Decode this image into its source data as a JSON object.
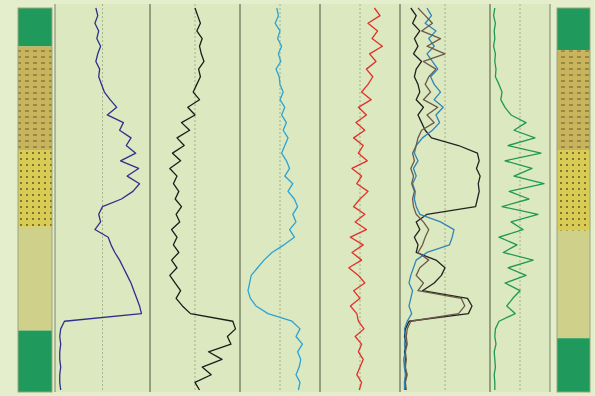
{
  "chart_data": [
    {
      "type": "bar",
      "stacked": true,
      "tick_labels": false,
      "categories": [
        null,
        null
      ],
      "ylim": [
        0,
        100
      ],
      "series": [
        {
          "color": "#1f9a5c",
          "values": [
            10,
            11
          ]
        },
        {
          "color": "#c9b45e",
          "values": [
            27,
            26
          ]
        },
        {
          "color": "#d9cc55",
          "values": [
            20,
            21
          ]
        },
        {
          "color": "#cfd08a",
          "values": [
            27,
            28
          ]
        },
        {
          "color": "#1f9a5c",
          "values": [
            16,
            14
          ]
        }
      ]
    },
    {
      "type": "line",
      "tick_labels": false,
      "grid": true,
      "xlim": [
        0,
        100
      ],
      "ylim": [
        0,
        10
      ],
      "yticks": [
        0,
        5,
        10
      ],
      "x": [
        0,
        2,
        4,
        6,
        8,
        10,
        12,
        14,
        16,
        18,
        20,
        22,
        24,
        26,
        28,
        30,
        32,
        34,
        36,
        38,
        40,
        42,
        44,
        46,
        48,
        50,
        52,
        54,
        56,
        58,
        60,
        62,
        64,
        66,
        68,
        70,
        72,
        74,
        76,
        78,
        80,
        82,
        84,
        86,
        88,
        90,
        92,
        94,
        96,
        98,
        100
      ],
      "series": [
        {
          "color": "#2e2f8c",
          "values": [
            4.3,
            4.5,
            4.2,
            4.6,
            4.4,
            4.8,
            4.5,
            4.3,
            4.7,
            4.6,
            4.9,
            5.2,
            5.8,
            6.5,
            5.5,
            7.2,
            6.8,
            8.0,
            7.5,
            8.5,
            6.9,
            8.8,
            7.6,
            8.9,
            8.2,
            7.0,
            5.0,
            4.6,
            4.8,
            4.2,
            5.6,
            5.9,
            6.3,
            6.8,
            7.2,
            7.6,
            8.0,
            8.3,
            8.6,
            8.9,
            9.1,
            1.0,
            0.6,
            0.5,
            0.6,
            0.5,
            0.5,
            0.6,
            0.5,
            0.5,
            0.6
          ]
        }
      ]
    },
    {
      "type": "line",
      "tick_labels": false,
      "grid": true,
      "xlim": [
        0,
        100
      ],
      "ylim": [
        0,
        10
      ],
      "yticks": [
        0,
        5,
        10
      ],
      "x": [
        0,
        2,
        4,
        6,
        8,
        10,
        12,
        14,
        16,
        18,
        20,
        22,
        24,
        26,
        28,
        30,
        32,
        34,
        36,
        38,
        40,
        42,
        44,
        46,
        48,
        50,
        52,
        54,
        56,
        58,
        60,
        62,
        64,
        66,
        68,
        70,
        72,
        74,
        76,
        78,
        80,
        82,
        84,
        86,
        88,
        90,
        92,
        94,
        96,
        98,
        100
      ],
      "series": [
        {
          "color": "#1c1c1c",
          "values": [
            5.0,
            5.3,
            5.6,
            5.2,
            5.8,
            5.5,
            5.7,
            6.0,
            5.4,
            5.6,
            5.2,
            4.8,
            5.5,
            4.2,
            5.0,
            3.5,
            4.4,
            3.0,
            3.8,
            2.5,
            3.4,
            2.2,
            3.0,
            2.6,
            3.2,
            2.8,
            3.5,
            2.9,
            3.3,
            2.4,
            3.0,
            2.6,
            3.2,
            2.4,
            3.0,
            2.2,
            2.8,
            3.4,
            2.9,
            3.6,
            4.5,
            9.2,
            9.5,
            8.6,
            9.0,
            6.5,
            8.0,
            5.8,
            6.8,
            5.0,
            5.5
          ]
        }
      ]
    },
    {
      "type": "line",
      "tick_labels": false,
      "grid": true,
      "xlim": [
        0,
        100
      ],
      "ylim": [
        0,
        10
      ],
      "yticks": [
        0,
        5,
        10
      ],
      "x": [
        0,
        2,
        4,
        6,
        8,
        10,
        12,
        14,
        16,
        18,
        20,
        22,
        24,
        26,
        28,
        30,
        32,
        34,
        36,
        38,
        40,
        42,
        44,
        46,
        48,
        50,
        52,
        54,
        56,
        58,
        60,
        62,
        64,
        66,
        68,
        70,
        72,
        74,
        76,
        78,
        80,
        82,
        84,
        86,
        88,
        90,
        92,
        94,
        96,
        98,
        100
      ],
      "series": [
        {
          "color": "#2aa3d6",
          "values": [
            4.6,
            4.8,
            4.4,
            5.0,
            4.7,
            5.2,
            4.8,
            5.1,
            4.5,
            4.9,
            5.0,
            5.4,
            5.0,
            5.6,
            5.2,
            5.8,
            5.4,
            6.0,
            5.6,
            5.2,
            5.8,
            6.2,
            5.6,
            6.6,
            6.0,
            6.8,
            7.2,
            6.6,
            7.0,
            6.2,
            6.8,
            5.5,
            4.0,
            3.0,
            2.2,
            1.4,
            1.2,
            1.0,
            1.3,
            2.0,
            3.5,
            6.5,
            7.5,
            7.0,
            7.8,
            7.2,
            7.6,
            7.4,
            7.0,
            7.5,
            7.3
          ]
        }
      ]
    },
    {
      "type": "line",
      "tick_labels": false,
      "grid": true,
      "xlim": [
        0,
        100
      ],
      "ylim": [
        0,
        10
      ],
      "yticks": [
        0,
        5,
        10
      ],
      "x": [
        0,
        2,
        4,
        6,
        8,
        10,
        12,
        14,
        16,
        18,
        20,
        22,
        24,
        26,
        28,
        30,
        32,
        34,
        36,
        38,
        40,
        42,
        44,
        46,
        48,
        50,
        52,
        54,
        56,
        58,
        60,
        62,
        64,
        66,
        68,
        70,
        72,
        74,
        76,
        78,
        80,
        82,
        84,
        86,
        88,
        90,
        92,
        94,
        96,
        98,
        100
      ],
      "series": [
        {
          "color": "#e0302a",
          "values": [
            6.8,
            7.5,
            6.0,
            7.2,
            6.5,
            7.8,
            6.2,
            7.0,
            5.8,
            6.6,
            6.0,
            5.2,
            6.4,
            4.8,
            5.8,
            4.5,
            5.6,
            4.2,
            5.4,
            4.8,
            5.9,
            4.0,
            5.2,
            4.6,
            6.0,
            5.0,
            4.2,
            5.6,
            4.4,
            5.8,
            3.8,
            5.4,
            4.0,
            5.2,
            3.6,
            4.8,
            5.6,
            4.2,
            5.0,
            3.8,
            4.6,
            4.8,
            5.5,
            4.4,
            5.2,
            4.8,
            5.4,
            5.0,
            4.6,
            5.2,
            4.9
          ]
        }
      ]
    },
    {
      "type": "line",
      "tick_labels": false,
      "grid": true,
      "xlim": [
        0,
        100
      ],
      "ylim": [
        0,
        10
      ],
      "yticks": [
        0,
        5,
        10
      ],
      "x": [
        0,
        2,
        4,
        6,
        8,
        10,
        12,
        14,
        16,
        18,
        20,
        22,
        24,
        26,
        28,
        30,
        32,
        34,
        36,
        38,
        40,
        42,
        44,
        46,
        48,
        50,
        52,
        54,
        56,
        58,
        60,
        62,
        64,
        66,
        68,
        70,
        72,
        74,
        76,
        78,
        80,
        82,
        84,
        86,
        88,
        90,
        92,
        94,
        96,
        98,
        100
      ],
      "series": [
        {
          "color": "#222222",
          "values": [
            1.2,
            1.8,
            1.4,
            2.2,
            1.6,
            2.0,
            1.5,
            2.4,
            1.8,
            1.6,
            2.0,
            2.2,
            1.8,
            2.6,
            2.0,
            2.4,
            2.8,
            3.5,
            6.5,
            8.6,
            8.8,
            8.5,
            8.9,
            8.7,
            8.8,
            8.6,
            8.4,
            3.0,
            1.8,
            2.2,
            1.6,
            2.0,
            1.8,
            4.0,
            5.0,
            4.6,
            3.8,
            2.5,
            7.5,
            8.0,
            7.6,
            1.0,
            0.6,
            0.5,
            0.7,
            0.5,
            0.6,
            0.5,
            0.7,
            0.5,
            0.6
          ]
        },
        {
          "color": "#2f86b8",
          "values": [
            3.0,
            3.5,
            2.8,
            4.0,
            3.2,
            3.8,
            3.0,
            3.6,
            4.2,
            3.4,
            3.8,
            4.5,
            3.8,
            4.8,
            4.0,
            4.4,
            3.6,
            2.5,
            1.8,
            1.6,
            2.0,
            1.5,
            1.8,
            1.4,
            1.7,
            1.6,
            1.8,
            2.2,
            4.5,
            6.0,
            5.8,
            5.5,
            3.0,
            1.8,
            1.5,
            1.2,
            1.0,
            1.4,
            1.2,
            1.0,
            1.3,
            0.8,
            0.5,
            0.6,
            0.5,
            0.6,
            0.4,
            0.5,
            0.6,
            0.5,
            0.5
          ]
        },
        {
          "color": "#6b5a4a",
          "values": [
            2.0,
            2.8,
            3.6,
            2.4,
            4.5,
            3.0,
            5.0,
            2.6,
            4.0,
            3.2,
            2.8,
            3.4,
            2.6,
            4.2,
            3.0,
            3.8,
            2.4,
            2.0,
            1.8,
            1.4,
            1.6,
            1.2,
            1.5,
            1.3,
            1.6,
            1.4,
            1.5,
            1.8,
            2.6,
            3.2,
            2.8,
            2.5,
            2.0,
            3.2,
            2.2,
            1.8,
            2.6,
            2.0,
            6.8,
            7.2,
            6.5,
            1.2,
            0.8,
            0.7,
            0.8,
            0.6,
            0.7,
            0.6,
            0.8,
            0.6,
            0.7
          ]
        }
      ]
    },
    {
      "type": "line",
      "tick_labels": false,
      "grid": true,
      "xlim": [
        0,
        100
      ],
      "ylim": [
        0,
        10
      ],
      "yticks": [
        0,
        5,
        10
      ],
      "x": [
        0,
        2,
        4,
        6,
        8,
        10,
        12,
        14,
        16,
        18,
        20,
        22,
        24,
        26,
        28,
        30,
        32,
        34,
        36,
        38,
        40,
        42,
        44,
        46,
        48,
        50,
        52,
        54,
        56,
        58,
        60,
        62,
        64,
        66,
        68,
        70,
        72,
        74,
        76,
        78,
        80,
        82,
        84,
        86,
        88,
        90,
        92,
        94,
        96,
        98,
        100
      ],
      "series": [
        {
          "color": "#1f9a4e",
          "values": [
            0.8,
            0.6,
            0.9,
            0.7,
            0.8,
            0.6,
            0.9,
            0.8,
            1.0,
            0.9,
            1.5,
            2.0,
            1.8,
            2.5,
            3.5,
            6.0,
            4.0,
            7.5,
            3.0,
            8.5,
            2.5,
            7.0,
            4.0,
            9.0,
            3.2,
            6.5,
            2.0,
            8.0,
            3.5,
            5.5,
            1.5,
            4.5,
            2.2,
            7.2,
            3.0,
            6.0,
            2.5,
            5.0,
            3.8,
            2.8,
            4.2,
            1.5,
            0.9,
            0.8,
            1.0,
            0.7,
            0.8,
            0.9,
            0.7,
            0.8,
            0.8
          ]
        }
      ]
    }
  ]
}
